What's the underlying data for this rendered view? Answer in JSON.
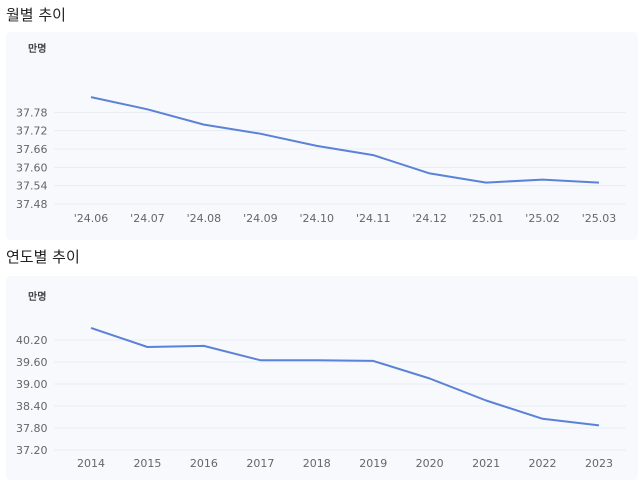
{
  "sections": [
    {
      "title": "월별 추이"
    },
    {
      "title": "연도별 추이"
    }
  ],
  "chart_data": [
    {
      "type": "line",
      "title": "월별 추이",
      "unit_label": "만명",
      "categories": [
        "'24.06",
        "'24.07",
        "'24.08",
        "'24.09",
        "'24.10",
        "'24.11",
        "'24.12",
        "'25.01",
        "'25.02",
        "'25.03"
      ],
      "values": [
        37.83,
        37.79,
        37.74,
        37.71,
        37.67,
        37.64,
        37.58,
        37.55,
        37.56,
        37.55
      ],
      "yticks": [
        "37.78",
        "37.72",
        "37.66",
        "37.60",
        "37.54",
        "37.48"
      ],
      "ylim": [
        37.48,
        37.84
      ],
      "grid": true,
      "color": "#5b82d6"
    },
    {
      "type": "line",
      "title": "연도별 추이",
      "unit_label": "만명",
      "categories": [
        "2014",
        "2015",
        "2016",
        "2017",
        "2018",
        "2019",
        "2020",
        "2021",
        "2022",
        "2023"
      ],
      "values": [
        40.53,
        40.01,
        40.04,
        39.65,
        39.65,
        39.63,
        39.15,
        38.55,
        38.05,
        37.87
      ],
      "yticks": [
        "40.20",
        "39.60",
        "39.00",
        "38.40",
        "37.80",
        "37.20"
      ],
      "ylim": [
        37.2,
        40.8
      ],
      "grid": true,
      "color": "#5b82d6"
    }
  ]
}
